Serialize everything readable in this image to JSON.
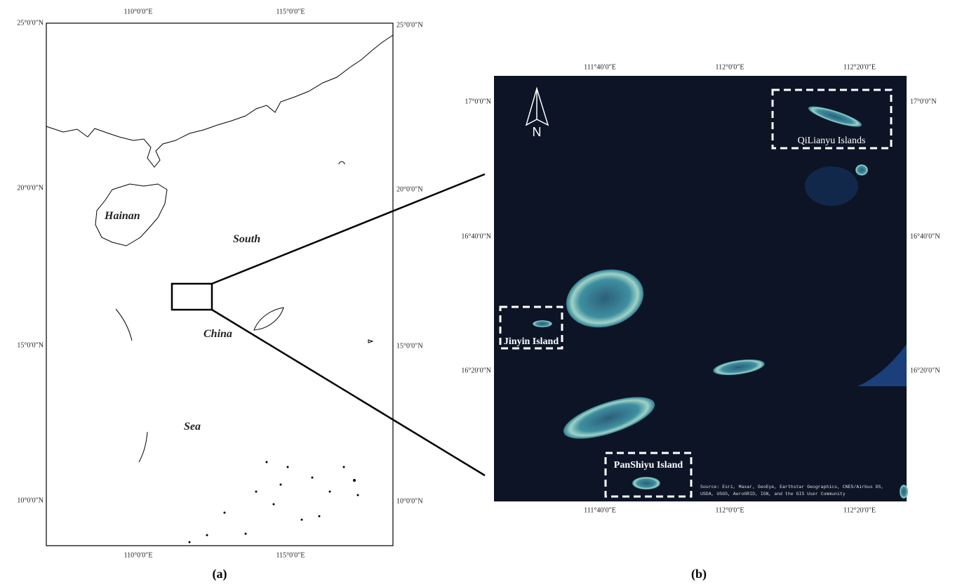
{
  "panel_a": {
    "lon_labels": [
      "110°0′0″E",
      "115°0′0″E"
    ],
    "lat_labels": [
      "25°0′0″N",
      "20°0′0″N",
      "15°0′0″N",
      "10°0′0″N"
    ],
    "place_labels": [
      "Hainan",
      "South",
      "China",
      "Sea"
    ],
    "caption": "(a)"
  },
  "panel_b": {
    "lon_labels": [
      "111°40′0″E",
      "112°0′0″E",
      "112°20′0″E"
    ],
    "lat_labels": [
      "17°0′0″N",
      "16°40′0″N",
      "16°20′0″N"
    ],
    "north": "N",
    "island_labels": [
      "QiLianyu Islands",
      "Jinyin Island",
      "PanShiyu Island"
    ],
    "source": [
      "Source: Esri, Maxar, GeoEye, Earthstar Geographics, CNES/Airbus DS,",
      "USDA, USGS, AeroGRID, IGN, and the GIS User Community"
    ],
    "caption": "(b)"
  }
}
